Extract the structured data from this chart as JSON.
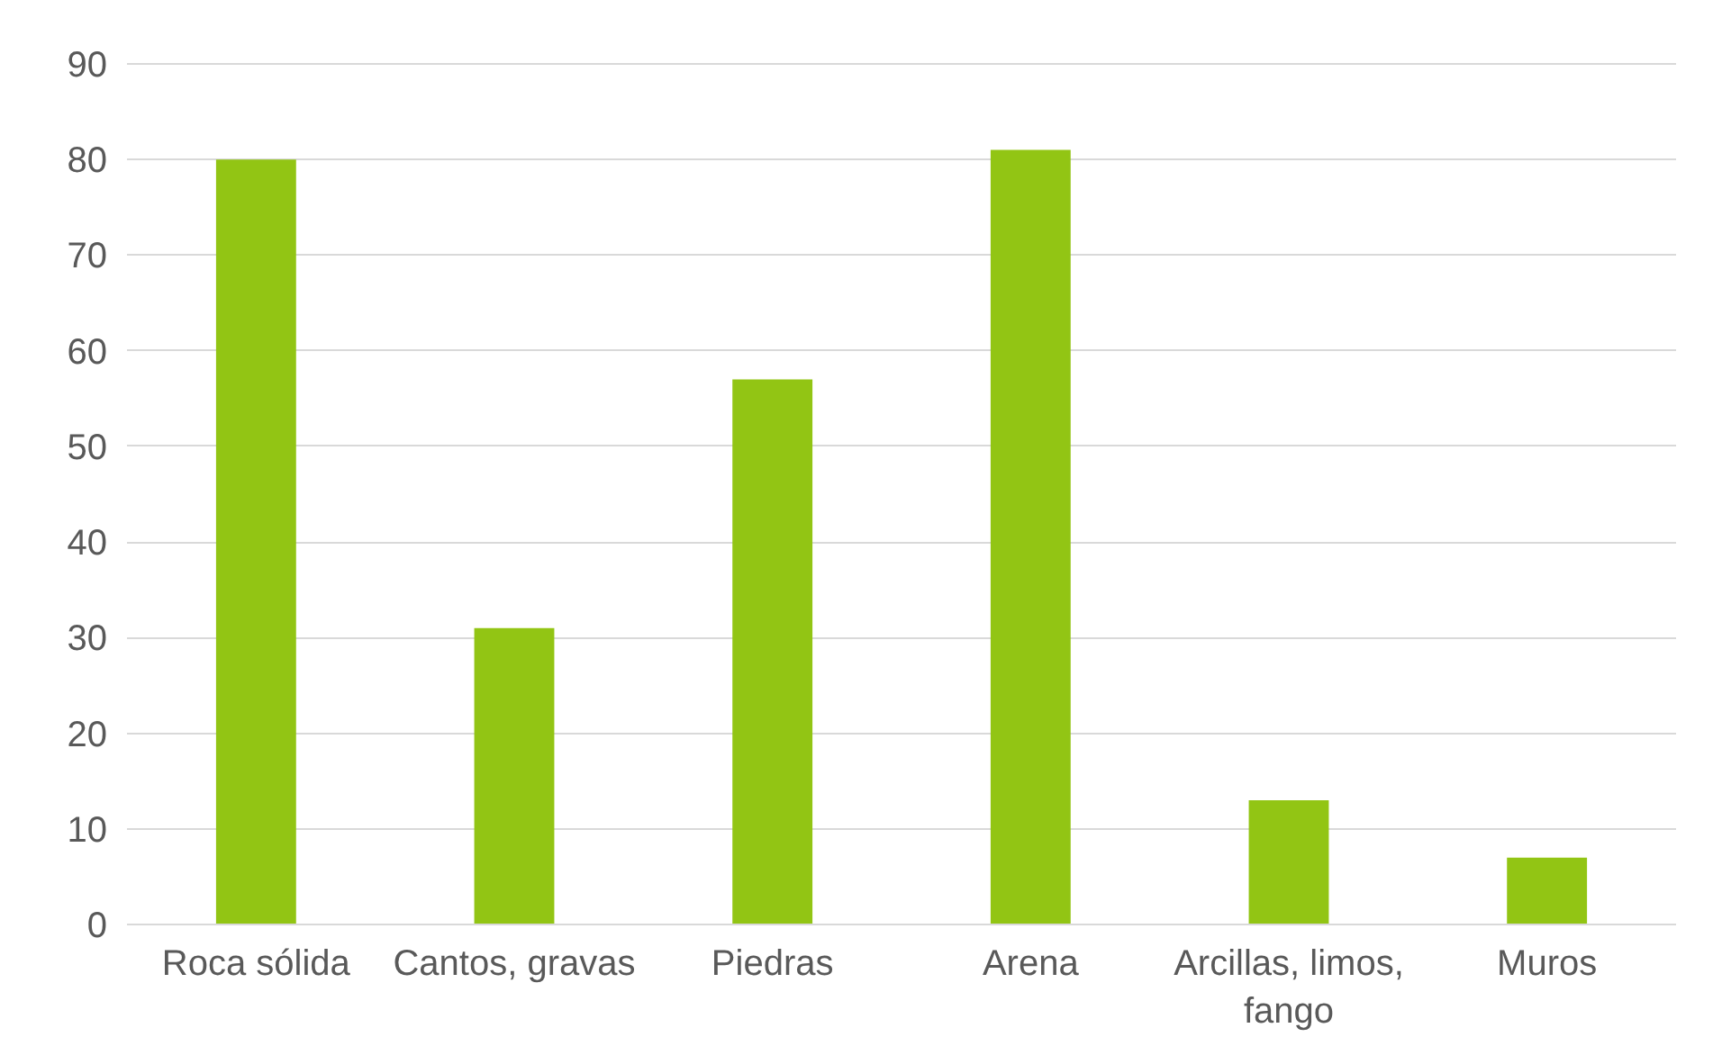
{
  "chart_data": {
    "type": "bar",
    "categories": [
      "Roca sólida",
      "Cantos, gravas",
      "Piedras",
      "Arena",
      "Arcillas, limos, fango",
      "Muros"
    ],
    "values": [
      80,
      31,
      57,
      81,
      13,
      7
    ],
    "color": "#92c514",
    "ylim": [
      0,
      90
    ],
    "yticks": [
      0,
      10,
      20,
      30,
      40,
      50,
      60,
      70,
      80,
      90
    ],
    "grid": "y"
  }
}
